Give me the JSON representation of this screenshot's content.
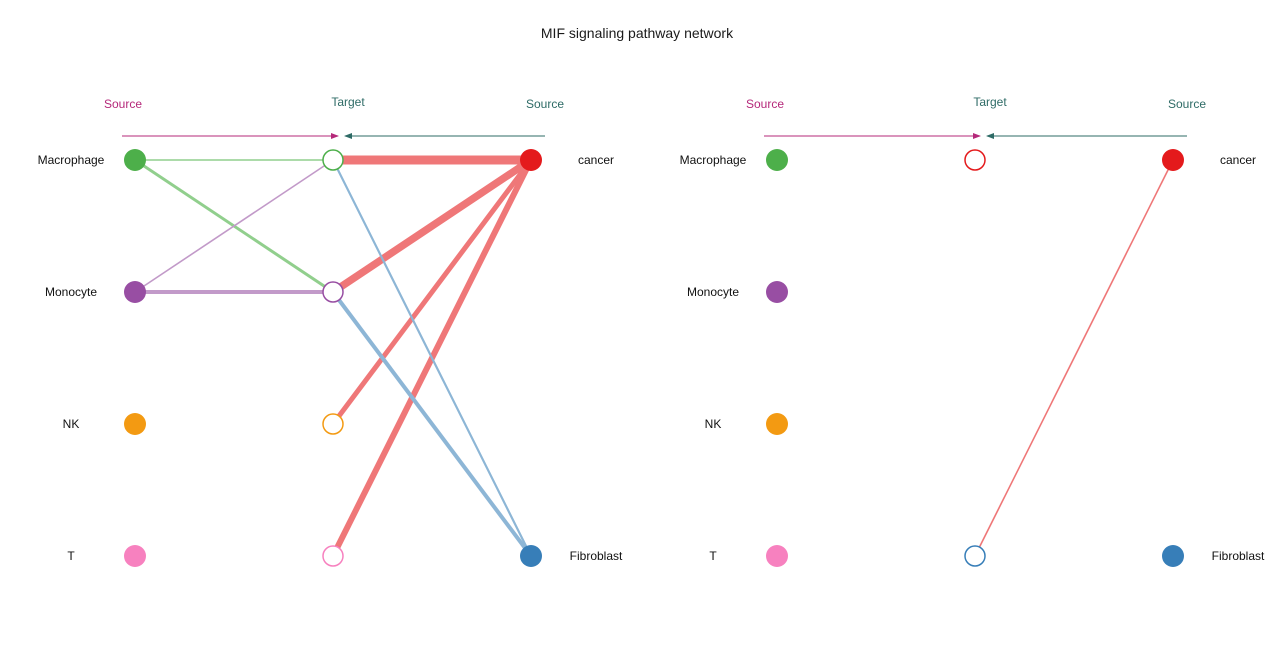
{
  "title": "MIF signaling pathway network",
  "colors": {
    "source_header": "#b5287a",
    "source_right_header": "#2e6b66",
    "target_header": "#2e6b66"
  },
  "cells": [
    {
      "id": "macrophage",
      "name": "Macrophage",
      "color": "#4daf4a",
      "edge_color": "#91cf8d"
    },
    {
      "id": "monocyte",
      "name": "Monocyte",
      "color": "#984ea3",
      "edge_color": "#c29ac9"
    },
    {
      "id": "nk",
      "name": "NK",
      "color": "#f39a12",
      "edge_color": "#f6bd6a"
    },
    {
      "id": "t",
      "name": "T",
      "color": "#f781bf",
      "edge_color": "#f9b3d8"
    },
    {
      "id": "cancer",
      "name": "cancer",
      "color": "#e41a1c",
      "edge_color": "#ef7778"
    },
    {
      "id": "fibroblast",
      "name": "Fibroblast",
      "color": "#377eb8",
      "edge_color": "#8db6d6"
    }
  ],
  "panels": [
    {
      "id": "left",
      "headers": {
        "source_left": "Source",
        "target": "Target",
        "source_right": "Source"
      },
      "edges": [
        {
          "source": "macrophage",
          "target": "macrophage",
          "weight": 1.6
        },
        {
          "source": "macrophage",
          "target": "monocyte",
          "weight": 3.0
        },
        {
          "source": "monocyte",
          "target": "macrophage",
          "weight": 1.6
        },
        {
          "source": "monocyte",
          "target": "monocyte",
          "weight": 4.0
        },
        {
          "source": "cancer",
          "target": "macrophage",
          "weight": 9.0
        },
        {
          "source": "cancer",
          "target": "monocyte",
          "weight": 7.5
        },
        {
          "source": "cancer",
          "target": "nk",
          "weight": 5.0
        },
        {
          "source": "cancer",
          "target": "t",
          "weight": 6.0
        },
        {
          "source": "fibroblast",
          "target": "macrophage",
          "weight": 2.2
        },
        {
          "source": "fibroblast",
          "target": "monocyte",
          "weight": 4.0
        }
      ]
    },
    {
      "id": "right",
      "headers": {
        "source_left": "Source",
        "target": "Target",
        "source_right": "Source"
      },
      "edges": [
        {
          "source": "cancer",
          "target": "fibroblast",
          "weight": 1.6
        }
      ]
    }
  ]
}
